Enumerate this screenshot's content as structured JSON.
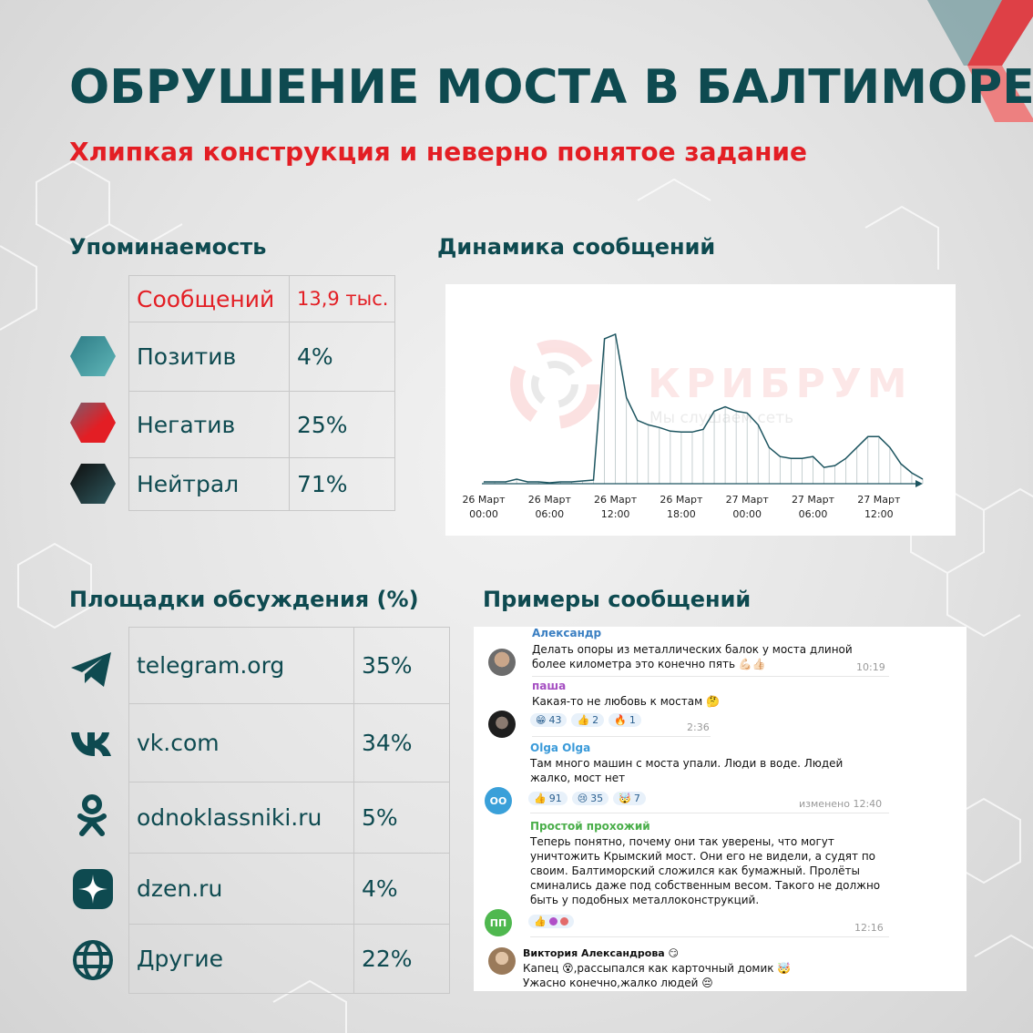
{
  "header": {
    "title": "ОБРУШЕНИЕ МОСТА В БАЛТИМОРЕ",
    "subtitle": "Хлипкая конструкция и неверно понятое задание"
  },
  "mentions": {
    "heading": "Упоминаемость",
    "rows": [
      {
        "label": "Сообщений",
        "value": "13,9 тыс."
      },
      {
        "label": "Позитив",
        "value": "4%",
        "icon": "teal-hexagon-icon",
        "color": "#3a9aa0"
      },
      {
        "label": "Негатив",
        "value": "25%",
        "icon": "red-hexagon-icon",
        "color": "#e31e24"
      },
      {
        "label": "Нейтрал",
        "value": "71%",
        "icon": "dark-hexagon-icon",
        "color": "#1e3a40"
      }
    ]
  },
  "dynamics": {
    "heading": "Динамика сообщений",
    "watermark": {
      "brand": "КРИБРУМ",
      "tagline": "Мы слушаем сеть"
    },
    "chart_data": {
      "type": "area",
      "x_ticks": [
        {
          "line1": "26 Март",
          "line2": "00:00"
        },
        {
          "line1": "26 Март",
          "line2": "06:00"
        },
        {
          "line1": "26 Март",
          "line2": "12:00"
        },
        {
          "line1": "26 Март",
          "line2": "18:00"
        },
        {
          "line1": "27 Март",
          "line2": "00:00"
        },
        {
          "line1": "27 Март",
          "line2": "06:00"
        },
        {
          "line1": "27 Март",
          "line2": "12:00"
        }
      ],
      "x_hours": [
        0,
        1,
        2,
        3,
        4,
        5,
        6,
        7,
        8,
        9,
        10,
        11,
        12,
        13,
        14,
        15,
        16,
        17,
        18,
        19,
        20,
        21,
        22,
        23,
        24,
        25,
        26,
        27,
        28,
        29,
        30,
        31,
        32,
        33,
        34,
        35,
        36,
        37,
        38,
        39,
        40
      ],
      "values": [
        2,
        2,
        2,
        5,
        2,
        2,
        1,
        2,
        2,
        3,
        4,
        160,
        165,
        95,
        70,
        65,
        62,
        58,
        57,
        57,
        60,
        80,
        85,
        80,
        78,
        65,
        40,
        30,
        28,
        28,
        30,
        18,
        20,
        28,
        40,
        52,
        52,
        40,
        22,
        12,
        5
      ],
      "y_max": 180,
      "grid": false
    }
  },
  "platforms": {
    "heading": "Площадки обсуждения (%)",
    "rows": [
      {
        "name": "telegram.org",
        "value": "35%",
        "icon": "telegram-icon"
      },
      {
        "name": "vk.com",
        "value": "34%",
        "icon": "vk-icon"
      },
      {
        "name": "odnoklassniki.ru",
        "value": "5%",
        "icon": "odnoklassniki-icon"
      },
      {
        "name": "dzen.ru",
        "value": "4%",
        "icon": "dzen-icon"
      },
      {
        "name": "Другие",
        "value": "22%",
        "icon": "globe-icon"
      }
    ]
  },
  "examples": {
    "heading": "Примеры сообщений",
    "messages": [
      {
        "author": "Александр",
        "author_color": "#3a7fc2",
        "text": "Делать опоры из металлических балок у моста длиной более километра это конечно пять 💪🏻👍🏻",
        "time": "10:19",
        "avatar": "photo"
      },
      {
        "author": "паша",
        "author_color": "#a54fc2",
        "text": "Какая-то не любовь к мостам 🤔",
        "reactions": [
          {
            "emoji": "😁",
            "count": "43"
          },
          {
            "emoji": "👍",
            "count": "2"
          },
          {
            "emoji": "🔥",
            "count": "1"
          }
        ],
        "time": "2:36",
        "avatar": "photo"
      },
      {
        "author": "Olga Olga",
        "author_color": "#3a9ad9",
        "text": "Там много машин с моста упали. Люди в воде. Людей жалко, мост нет",
        "reactions": [
          {
            "emoji": "👍",
            "count": "91"
          },
          {
            "emoji": "😢",
            "count": "35"
          },
          {
            "emoji": "🤯",
            "count": "7"
          }
        ],
        "time": "изменено 12:40",
        "avatar_initials": "ОО",
        "avatar_color": "#3aa0d9"
      },
      {
        "author": "Простой прохожий",
        "author_color": "#4aae4a",
        "text": "Теперь понятно, почему они так уверены, что могут уничтожить Крымский мост. Они его не видели, а судят по своим. Балтиморский сложился как бумажный. Пролёты сминались даже под собственным весом. Такого не должно быть у подобных металлоконструкций.",
        "reactions": [
          {
            "emoji": "👍",
            "count": ""
          }
        ],
        "reaction_avatars": [
          "и"
        ],
        "time": "12:16",
        "avatar_initials": "ПП",
        "avatar_color": "#4fb84f"
      },
      {
        "author": "Виктория Александрова 😏",
        "author_color": "#111111",
        "text": "Капец 😵,рассыпался как карточный домик 🤯 Ужасно конечно,жалко людей 😔",
        "avatar": "photo"
      }
    ]
  }
}
